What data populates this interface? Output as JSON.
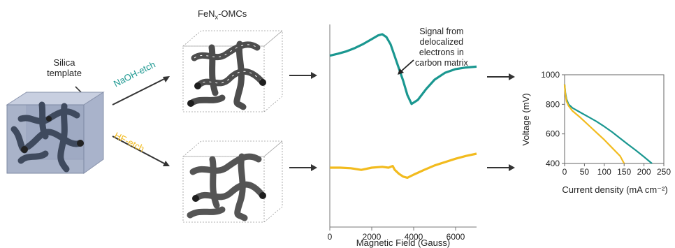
{
  "labels": {
    "silica_line1": "Silica",
    "silica_line2": "template",
    "omc_title": "FeN",
    "omc_sub": "x",
    "omc_suffix": "-OMCs",
    "naoh": "NaOH-etch",
    "hf": "HF-etch",
    "annotation": [
      "Signal from",
      "delocalized",
      "electrons in",
      "carbon matrix"
    ]
  },
  "colors": {
    "teal": "#1a9790",
    "gold": "#f2bb1e",
    "cube": "#9aa6bf",
    "strut": "#4a5568",
    "arrow": "#333333"
  },
  "epr": {
    "xlabel": "Magnetic Field (Gauss)",
    "xticks": [
      "0",
      "2000",
      "4000",
      "6000"
    ]
  },
  "chart_data": [
    {
      "type": "line",
      "title": "",
      "xlabel": "Magnetic Field (Gauss)",
      "ylabel": "",
      "xlim": [
        0,
        7000
      ],
      "series": [
        {
          "color": "#1a9790",
          "x": [
            0,
            400,
            800,
            1200,
            1600,
            2000,
            2300,
            2500,
            2700,
            2900,
            3100,
            3300,
            3500,
            3700,
            3900,
            4200,
            4600,
            5000,
            5500,
            6000,
            6500,
            7000
          ],
          "y": [
            0.47,
            0.52,
            0.58,
            0.66,
            0.76,
            0.88,
            0.97,
            1.0,
            0.93,
            0.75,
            0.45,
            0.15,
            -0.15,
            -0.5,
            -0.72,
            -0.62,
            -0.35,
            -0.12,
            0.05,
            0.14,
            0.18,
            0.2
          ]
        },
        {
          "color": "#f2bb1e",
          "x": [
            0,
            500,
            1000,
            1500,
            2000,
            2500,
            2800,
            3000,
            3100,
            3300,
            3500,
            3700,
            4000,
            4500,
            5000,
            5500,
            6000,
            6500,
            7000
          ],
          "y": [
            0.0,
            0.0,
            -0.02,
            -0.08,
            0.0,
            0.03,
            0.0,
            0.06,
            -0.08,
            -0.22,
            -0.32,
            -0.36,
            -0.25,
            -0.08,
            0.08,
            0.2,
            0.32,
            0.42,
            0.5
          ]
        }
      ]
    },
    {
      "type": "line",
      "title": "",
      "xlabel": "Current density (mA cm⁻²)",
      "ylabel": "Voltage (mV)",
      "xticks": [
        "0",
        "50",
        "100",
        "150",
        "200",
        "250"
      ],
      "yticks": [
        "400",
        "600",
        "800",
        "1000"
      ],
      "xlim": [
        0,
        250
      ],
      "ylim": [
        400,
        1000
      ],
      "series": [
        {
          "color": "#1a9790",
          "x": [
            0,
            2,
            5,
            10,
            20,
            40,
            60,
            80,
            100,
            120,
            140,
            160,
            180,
            200,
            220
          ],
          "y": [
            935,
            880,
            835,
            800,
            775,
            745,
            715,
            685,
            650,
            612,
            570,
            528,
            488,
            445,
            400
          ]
        },
        {
          "color": "#f2bb1e",
          "x": [
            0,
            2,
            5,
            10,
            20,
            40,
            60,
            80,
            100,
            120,
            140,
            150
          ],
          "y": [
            935,
            870,
            820,
            790,
            755,
            710,
            660,
            610,
            560,
            505,
            450,
            400
          ]
        }
      ]
    }
  ]
}
